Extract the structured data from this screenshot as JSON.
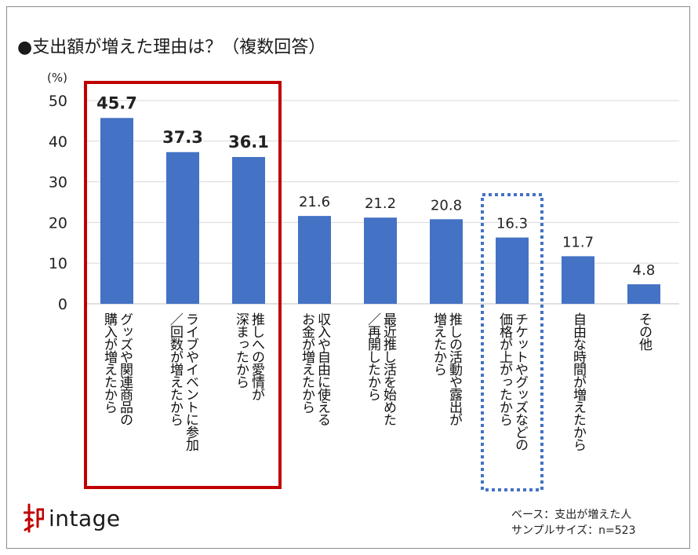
{
  "title": "●支出額が増えた理由は？（複数回答）",
  "unit_label": "(%)",
  "footnote": {
    "base": "ベース：支出が増えた人",
    "sample": "サンプルサイズ：n=523"
  },
  "logo": {
    "text": "intage",
    "icon": "intage-logo-icon"
  },
  "colors": {
    "bar": "#4472c4",
    "highlight_red": "#c00000",
    "highlight_blue": "#4472c4",
    "grid": "#d9d9d9"
  },
  "chart_data": {
    "type": "bar",
    "categories": [
      "グッズや関連商品の\n購入が増えたから",
      "ライブやイベントに参加\n／回数が増えたから",
      "推しへの愛情が\n深まったから",
      "収入や自由に使える\nお金が増えたから",
      "最近推し活を始めた\n／再開したから",
      "推しの活動や露出が\n増えたから",
      "チケットやグッズなどの\n価格が上がったから",
      "自由な時間が増えたから",
      "その他"
    ],
    "values": [
      45.7,
      37.3,
      36.1,
      21.6,
      21.2,
      20.8,
      16.3,
      11.7,
      4.8
    ],
    "value_labels": [
      "45.7",
      "37.3",
      "36.1",
      "21.6",
      "21.2",
      "20.8",
      "16.3",
      "11.7",
      "4.8"
    ],
    "y_ticks": [
      "0",
      "10",
      "20",
      "30",
      "40",
      "50"
    ],
    "ylim": [
      0,
      50
    ],
    "grid": true,
    "bold_value_indices": [
      0,
      1,
      2
    ],
    "highlight_red_indices": [
      0,
      1,
      2
    ],
    "highlight_blue_indices": [
      6
    ]
  }
}
